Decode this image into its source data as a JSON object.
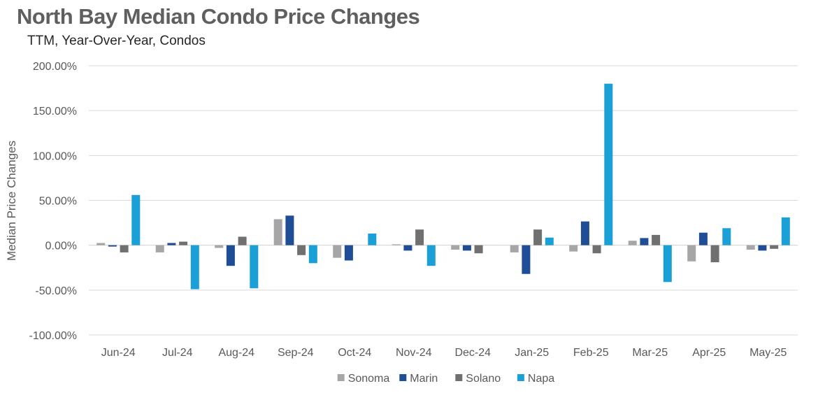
{
  "chart_data": {
    "type": "bar",
    "title": "North Bay Median Condo Price Changes",
    "subtitle": "TTM, Year-Over-Year,  Condos",
    "xlabel": "",
    "ylabel": "Median Price Changes",
    "ylim": [
      -100,
      200
    ],
    "yticks": [
      200,
      150,
      100,
      50,
      0,
      -50,
      -100
    ],
    "ytick_labels": [
      "200.00%",
      "150.00%",
      "100.00%",
      "50.00%",
      "0.00%",
      "-50.00%",
      "-100.00%"
    ],
    "grid": true,
    "legend_position": "bottom",
    "categories": [
      "Jun-24",
      "Jul-24",
      "Aug-24",
      "Sep-24",
      "Oct-24",
      "Nov-24",
      "Dec-24",
      "Jan-25",
      "Feb-25",
      "Mar-25",
      "Apr-25",
      "May-25"
    ],
    "series": [
      {
        "name": "Sonoma",
        "color": "#a6a6a6",
        "values": [
          2.5,
          -8,
          -3,
          29,
          -14,
          1,
          -5,
          -8,
          -7,
          5,
          -18,
          -5
        ]
      },
      {
        "name": "Marin",
        "color": "#1f4e96",
        "values": [
          -1.5,
          2.5,
          -23,
          33,
          -17,
          -6,
          -6,
          -32,
          26.5,
          8,
          14,
          -6
        ]
      },
      {
        "name": "Solano",
        "color": "#707070",
        "values": [
          -8,
          4,
          9.5,
          -11,
          0,
          17.5,
          -9,
          17.5,
          -9,
          11.5,
          -19,
          -4
        ]
      },
      {
        "name": "Napa",
        "color": "#1aa0d6",
        "values": [
          56,
          -49,
          -48,
          -20,
          13,
          -23,
          0,
          8.5,
          180,
          -41,
          19,
          31
        ]
      }
    ]
  }
}
